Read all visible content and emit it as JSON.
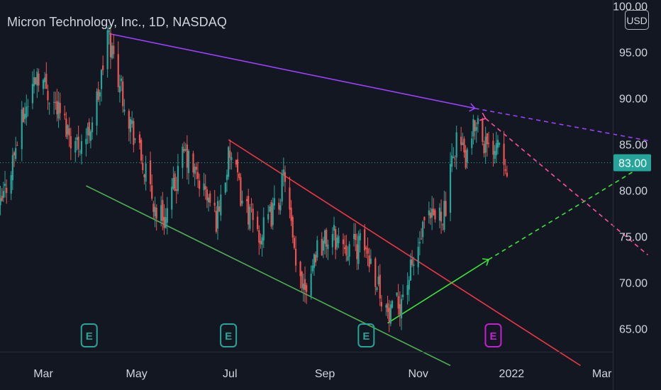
{
  "header": {
    "title": "Micron Technology, Inc., 1D, NASDAQ",
    "currency_badge": "USD"
  },
  "colors": {
    "background": "#131722",
    "up_candle": "#26a69a",
    "down_candle": "#ef5350",
    "axis_text": "#d1d4dc",
    "price_line": "#26a69a",
    "upper_trendline": "#9c41ff",
    "channel_upper": "#f23645",
    "channel_lower": "#4caf50",
    "projection_up": "#39e639",
    "projection_down": "#ff4fa3",
    "earnings_past": "#26a69a",
    "earnings_future": "#c71fd4"
  },
  "chart_data": {
    "type": "candlestick",
    "title": "Micron Technology, Inc., 1D, NASDAQ",
    "ylim": [
      61,
      101
    ],
    "y_ticks": [
      "65.00",
      "70.00",
      "75.00",
      "80.00",
      "85.00",
      "90.00",
      "95.00",
      "100.00"
    ],
    "x_ticks": [
      "Mar",
      "May",
      "Jul",
      "Sep",
      "Nov",
      "2022",
      "Mar"
    ],
    "last_price": {
      "value": 83.0,
      "label": "83.00"
    },
    "price_path_anchors": [
      {
        "date": "2021-02-01",
        "close": 78.0
      },
      {
        "date": "2021-02-16",
        "close": 88.0
      },
      {
        "date": "2021-02-25",
        "close": 93.0
      },
      {
        "date": "2021-03-10",
        "close": 89.0
      },
      {
        "date": "2021-03-22",
        "close": 85.0
      },
      {
        "date": "2021-03-30",
        "close": 86.0
      },
      {
        "date": "2021-04-07",
        "close": 91.0
      },
      {
        "date": "2021-04-12",
        "close": 97.0
      },
      {
        "date": "2021-04-26",
        "close": 88.0
      },
      {
        "date": "2021-05-13",
        "close": 78.0
      },
      {
        "date": "2021-05-20",
        "close": 77.0
      },
      {
        "date": "2021-06-01",
        "close": 84.0
      },
      {
        "date": "2021-06-14",
        "close": 80.0
      },
      {
        "date": "2021-06-22",
        "close": 77.0
      },
      {
        "date": "2021-07-01",
        "close": 84.0
      },
      {
        "date": "2021-07-09",
        "close": 79.0
      },
      {
        "date": "2021-07-21",
        "close": 75.0
      },
      {
        "date": "2021-08-02",
        "close": 79.0
      },
      {
        "date": "2021-08-06",
        "close": 82.0
      },
      {
        "date": "2021-08-13",
        "close": 71.0
      },
      {
        "date": "2021-08-20",
        "close": 70.0
      },
      {
        "date": "2021-08-27",
        "close": 74.0
      },
      {
        "date": "2021-09-07",
        "close": 75.0
      },
      {
        "date": "2021-09-17",
        "close": 74.0
      },
      {
        "date": "2021-09-27",
        "close": 74.0
      },
      {
        "date": "2021-10-04",
        "close": 71.0
      },
      {
        "date": "2021-10-13",
        "close": 66.0
      },
      {
        "date": "2021-10-20",
        "close": 68.0
      },
      {
        "date": "2021-10-29",
        "close": 72.0
      },
      {
        "date": "2021-11-05",
        "close": 76.0
      },
      {
        "date": "2021-11-12",
        "close": 77.0
      },
      {
        "date": "2021-11-19",
        "close": 78.0
      },
      {
        "date": "2021-11-26",
        "close": 86.0
      },
      {
        "date": "2021-12-03",
        "close": 83.0
      },
      {
        "date": "2021-12-09",
        "close": 88.0
      },
      {
        "date": "2021-12-17",
        "close": 84.0
      },
      {
        "date": "2021-12-23",
        "close": 86.0
      },
      {
        "date": "2021-12-29",
        "close": 83.0
      }
    ],
    "earnings_events": [
      {
        "date": "2021-03-31",
        "label": "E",
        "future": false
      },
      {
        "date": "2021-06-30",
        "label": "E",
        "future": false
      },
      {
        "date": "2021-09-28",
        "label": "E",
        "future": false
      },
      {
        "date": "2021-12-20",
        "label": "E",
        "future": true
      }
    ],
    "drawings": [
      {
        "name": "upper-trendline",
        "from": {
          "date": "2021-04-13",
          "price": 97.0
        },
        "to": {
          "date": "2021-12-08",
          "price": 88.9
        },
        "style": "solid",
        "color": "#9c41ff"
      },
      {
        "name": "upper-trendline-projection",
        "from": {
          "date": "2021-12-08",
          "price": 88.9
        },
        "to": {
          "date": "2022-03-31",
          "price": 85.4
        },
        "style": "dashed",
        "color": "#9c41ff"
      },
      {
        "name": "channel-upper-line",
        "from": {
          "date": "2021-06-30",
          "price": 85.5
        },
        "to": {
          "date": "2022-02-15",
          "price": 61.0
        },
        "style": "solid",
        "color": "#f23645"
      },
      {
        "name": "channel-lower-line",
        "from": {
          "date": "2021-03-29",
          "price": 80.5
        },
        "to": {
          "date": "2021-11-22",
          "price": 61.0
        },
        "style": "solid",
        "color": "#4caf50"
      },
      {
        "name": "projection-up-line",
        "from": {
          "date": "2021-10-12",
          "price": 65.6
        },
        "to": {
          "date": "2021-12-17",
          "price": 72.5
        },
        "style": "solid",
        "color": "#39e639"
      },
      {
        "name": "projection-up-dashed",
        "from": {
          "date": "2021-12-17",
          "price": 72.5
        },
        "to": {
          "date": "2022-03-31",
          "price": 83.0
        },
        "style": "dashed",
        "color": "#39e639"
      },
      {
        "name": "projection-down-dashed",
        "from": {
          "date": "2021-12-15",
          "price": 87.8
        },
        "to": {
          "date": "2022-03-31",
          "price": 73.0
        },
        "style": "dashed",
        "color": "#ff4fa3"
      }
    ],
    "grid": false,
    "legend": "none"
  }
}
